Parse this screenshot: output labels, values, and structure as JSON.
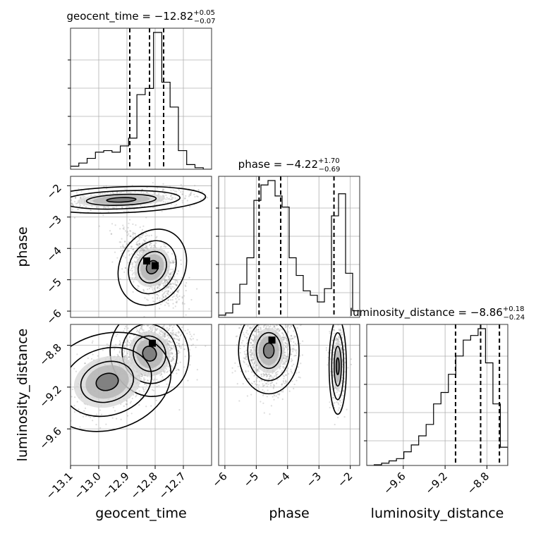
{
  "chart_data": {
    "type": "corner",
    "grid": true,
    "parameters": [
      {
        "name": "geocent_time",
        "title": {
          "prefix": "geocent_time = −12.82",
          "plus": "+0.05",
          "minus": "−0.07"
        },
        "ticks": [
          -13.1,
          -13.0,
          -12.9,
          -12.8,
          -12.7
        ],
        "tick_labels": [
          "−13.1",
          "−13.0",
          "−12.9",
          "−12.8",
          "−12.7"
        ],
        "range": [
          -13.1,
          -12.6
        ],
        "quantiles": [
          -12.89,
          -12.82,
          -12.77
        ],
        "hist": [
          0.02,
          0.04,
          0.07,
          0.11,
          0.12,
          0.11,
          0.15,
          0.2,
          0.48,
          0.52,
          0.88,
          0.56,
          0.4,
          0.12,
          0.03,
          0.01,
          0.0
        ]
      },
      {
        "name": "phase",
        "title": {
          "prefix": "phase = −4.22",
          "plus": "+1.70",
          "minus": "−0.69"
        },
        "ticks": [
          -6,
          -5,
          -4,
          -3,
          -2
        ],
        "tick_labels": [
          "−6",
          "−5",
          "−4",
          "−3",
          "−2"
        ],
        "range": [
          -6.2,
          -1.7
        ],
        "quantiles": [
          -4.91,
          -4.22,
          -2.52
        ],
        "hist": [
          0.01,
          0.02,
          0.06,
          0.15,
          0.27,
          0.53,
          0.6,
          0.62,
          0.55,
          0.5,
          0.27,
          0.19,
          0.12,
          0.1,
          0.07,
          0.13,
          0.46,
          0.56,
          0.2,
          0.03
        ]
      },
      {
        "name": "luminosity_distance",
        "title": {
          "prefix": "luminosity_distance = −8.86",
          "plus": "+0.18",
          "minus": "−0.24"
        },
        "ticks": [
          -9.6,
          -9.2,
          -8.8
        ],
        "tick_labels": [
          "−9.6",
          "−9.2",
          "−8.8"
        ],
        "range": [
          -9.95,
          -8.6
        ],
        "quantiles": [
          -9.1,
          -8.86,
          -8.68
        ],
        "hist": [
          0.0,
          0.003,
          0.01,
          0.02,
          0.03,
          0.06,
          0.09,
          0.13,
          0.18,
          0.27,
          0.32,
          0.4,
          0.48,
          0.55,
          0.57,
          0.6,
          0.45,
          0.27,
          0.08
        ]
      }
    ],
    "scatter_2d": [
      {
        "x_param": "geocent_time",
        "y_param": "phase",
        "clusters": [
          {
            "cx": -12.81,
            "cy": -4.6,
            "sx": 0.05,
            "sy": 0.55,
            "rho": -0.6,
            "n": 1100
          },
          {
            "cx": -12.92,
            "cy": -2.45,
            "sx": 0.13,
            "sy": 0.18,
            "rho": 0.3,
            "n": 550
          }
        ],
        "density_peaks": [
          {
            "x": -12.83,
            "y": -4.4
          },
          {
            "x": -12.8,
            "y": -4.55
          }
        ]
      },
      {
        "x_param": "geocent_time",
        "y_param": "luminosity_distance",
        "clusters": [
          {
            "cx": -12.82,
            "cy": -8.88,
            "sx": 0.06,
            "sy": 0.18,
            "rho": 0.4,
            "n": 1300
          },
          {
            "cx": -12.97,
            "cy": -9.15,
            "sx": 0.1,
            "sy": 0.2,
            "rho": 0.5,
            "n": 350
          }
        ],
        "density_peaks": [
          {
            "x": -12.81,
            "y": -8.78
          }
        ]
      },
      {
        "x_param": "phase",
        "y_param": "luminosity_distance",
        "clusters": [
          {
            "cx": -4.6,
            "cy": -8.85,
            "sx": 0.42,
            "sy": 0.18,
            "rho": 0.0,
            "n": 1200
          },
          {
            "cx": -2.4,
            "cy": -9.0,
            "sx": 0.12,
            "sy": 0.2,
            "rho": 0.0,
            "n": 450
          }
        ],
        "density_peaks": [
          {
            "x": -4.5,
            "y": -8.75
          }
        ]
      }
    ]
  }
}
